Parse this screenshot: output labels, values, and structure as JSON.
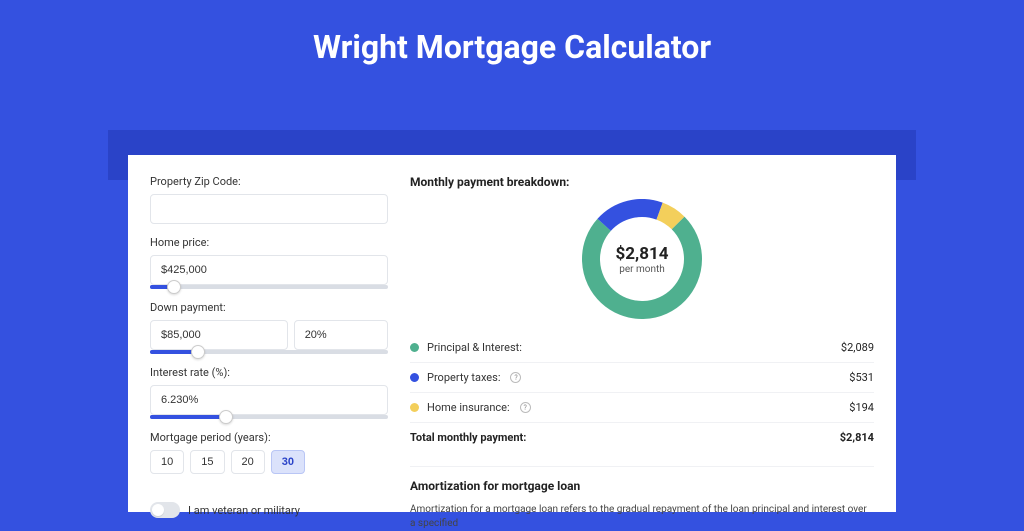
{
  "header": {
    "title": "Wright Mortgage Calculator"
  },
  "form": {
    "zip_label": "Property Zip Code:",
    "zip_value": "",
    "home_price_label": "Home price:",
    "home_price_value": "$425,000",
    "home_price_slider_pct": 10,
    "down_payment_label": "Down payment:",
    "down_payment_value": "$85,000",
    "down_payment_pct_value": "20%",
    "down_payment_slider_pct": 20,
    "interest_label": "Interest rate (%):",
    "interest_value": "6.230%",
    "interest_slider_pct": 32,
    "period_label": "Mortgage period (years):",
    "periods": [
      "10",
      "15",
      "20",
      "30"
    ],
    "period_active_index": 3,
    "veteran_label": "I am veteran or military"
  },
  "breakdown": {
    "title": "Monthly payment breakdown:",
    "center_amount": "$2,814",
    "center_sub": "per month",
    "donut": {
      "size": 120,
      "thickness": 18,
      "segments": [
        {
          "label": "Principal & Interest",
          "value": 2089,
          "color": "#4fb08f",
          "pct": 0.742
        },
        {
          "label": "Property taxes",
          "value": 531,
          "color": "#3451e0",
          "pct": 0.189
        },
        {
          "label": "Home insurance",
          "value": 194,
          "color": "#f3cf5b",
          "pct": 0.069
        }
      ],
      "start_angle_deg": -45
    },
    "rows": [
      {
        "label": "Principal & Interest:",
        "value": "$2,089",
        "dot_color": "#4fb08f",
        "info": false
      },
      {
        "label": "Property taxes:",
        "value": "$531",
        "dot_color": "#3451e0",
        "info": true
      },
      {
        "label": "Home insurance:",
        "value": "$194",
        "dot_color": "#f3cf5b",
        "info": true
      }
    ],
    "total_label": "Total monthly payment:",
    "total_value": "$2,814"
  },
  "amortization": {
    "title": "Amortization for mortgage loan",
    "text": "Amortization for a mortgage loan refers to the gradual repayment of the loan principal and interest over a specified"
  },
  "colors": {
    "page_bg": "#3451e0",
    "band_bg": "#2a43c8",
    "card_bg": "#ffffff",
    "border": "#e2e5ea"
  }
}
